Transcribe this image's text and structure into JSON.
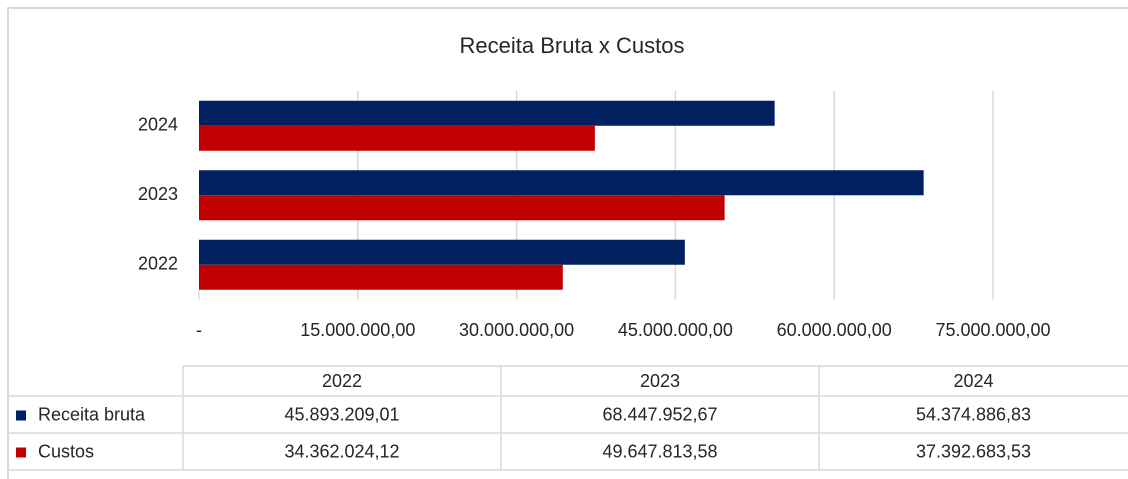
{
  "chart_data": {
    "type": "bar",
    "orientation": "horizontal",
    "title": "Receita Bruta x Custos",
    "categories": [
      "2022",
      "2023",
      "2024"
    ],
    "series": [
      {
        "name": "Receita bruta",
        "color": "#002060",
        "values": [
          45893209.01,
          68447952.67,
          54374886.83
        ],
        "value_labels": [
          "45.893.209,01",
          "68.447.952,67",
          "54.374.886,83"
        ]
      },
      {
        "name": "Custos",
        "color": "#c00000",
        "values": [
          34362024.12,
          49647813.58,
          37392683.53
        ],
        "value_labels": [
          "34.362.024,12",
          "49.647.813,58",
          "37.392.683,53"
        ]
      }
    ],
    "xlim": [
      0,
      75000000
    ],
    "xticks": [
      {
        "value": 0,
        "label": "-"
      },
      {
        "value": 15000000,
        "label": "15.000.000,00"
      },
      {
        "value": 30000000,
        "label": "30.000.000,00"
      },
      {
        "value": 45000000,
        "label": "45.000.000,00"
      },
      {
        "value": 60000000,
        "label": "60.000.000,00"
      },
      {
        "value": 75000000,
        "label": "75.000.000,00"
      }
    ],
    "grid": true
  }
}
